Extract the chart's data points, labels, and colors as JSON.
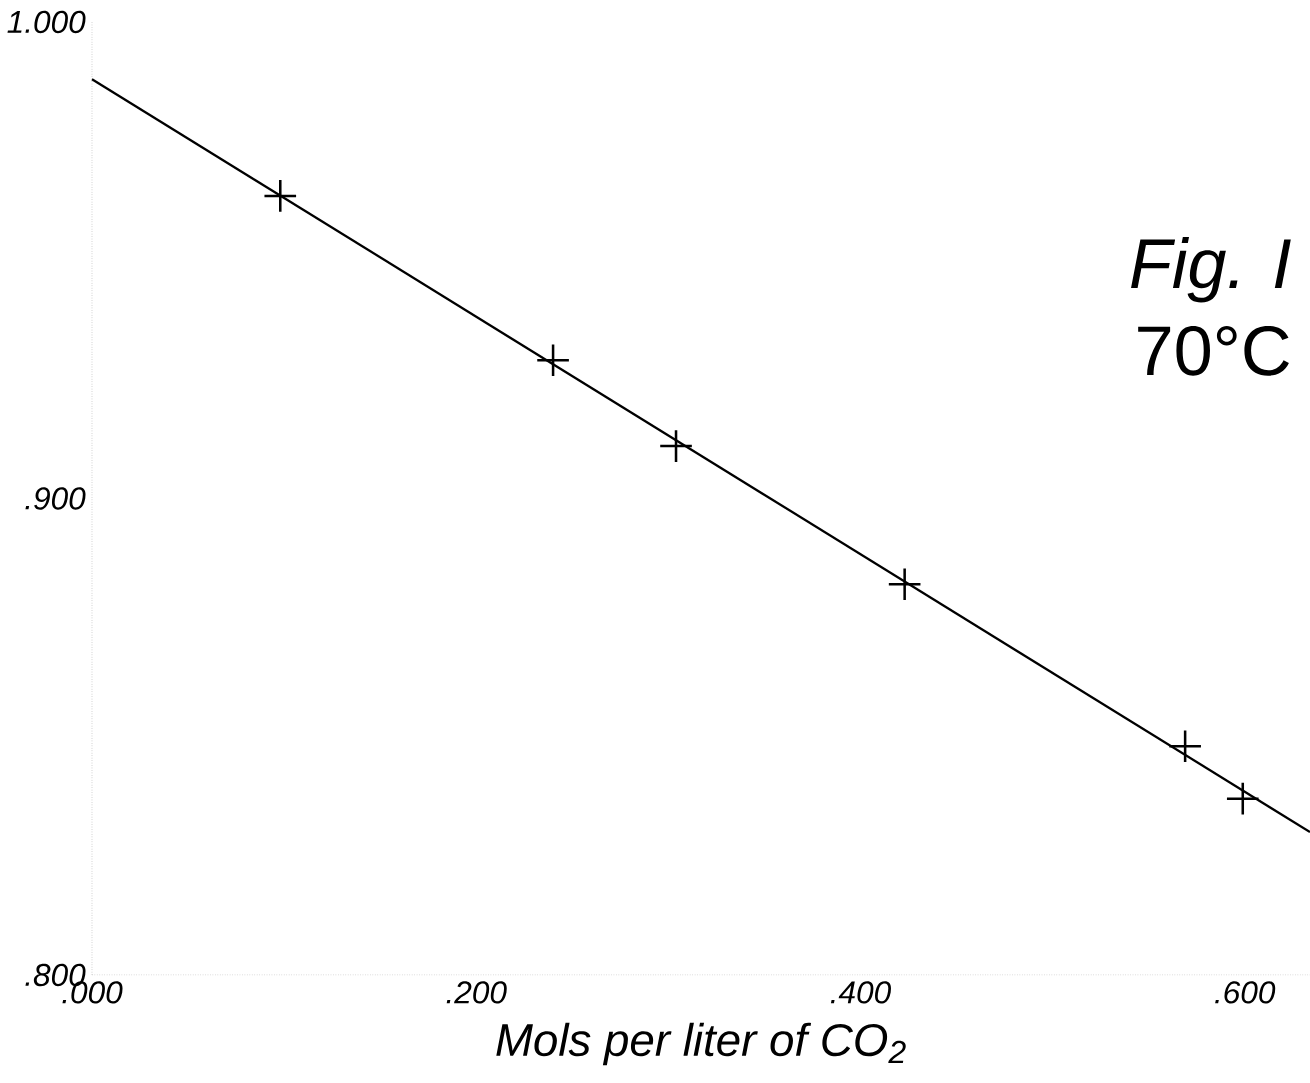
{
  "chart_data": {
    "type": "scatter",
    "title": "Fig. I",
    "subtitle": "70°C",
    "xlabel": "Mols per liter of CO$_{2}$",
    "xlim": [
      0,
      0.634
    ],
    "ylim": [
      0.8,
      1.0
    ],
    "xticks": [
      {
        "value": 0,
        "label": ".000"
      },
      {
        "value": 0.2,
        "label": ".200"
      },
      {
        "value": 0.4,
        "label": ".400"
      },
      {
        "value": 0.6,
        "label": ".600"
      }
    ],
    "yticks": [
      {
        "value": 0.8,
        "label": ".800"
      },
      {
        "value": 0.9,
        "label": ".900"
      },
      {
        "value": 1.0,
        "label": "1.000"
      }
    ],
    "series": [
      {
        "marker": "cross",
        "color": "#000000",
        "x": [
          0.098,
          0.24,
          0.304,
          0.423,
          0.569,
          0.599
        ],
        "values": [
          0.9635,
          0.929,
          0.911,
          0.882,
          0.848,
          0.837
        ]
      },
      {
        "type": "line",
        "color": "#000000",
        "line_style": "solid",
        "x": [
          0,
          0.634
        ],
        "values": [
          0.988,
          0.83
        ]
      }
    ]
  }
}
